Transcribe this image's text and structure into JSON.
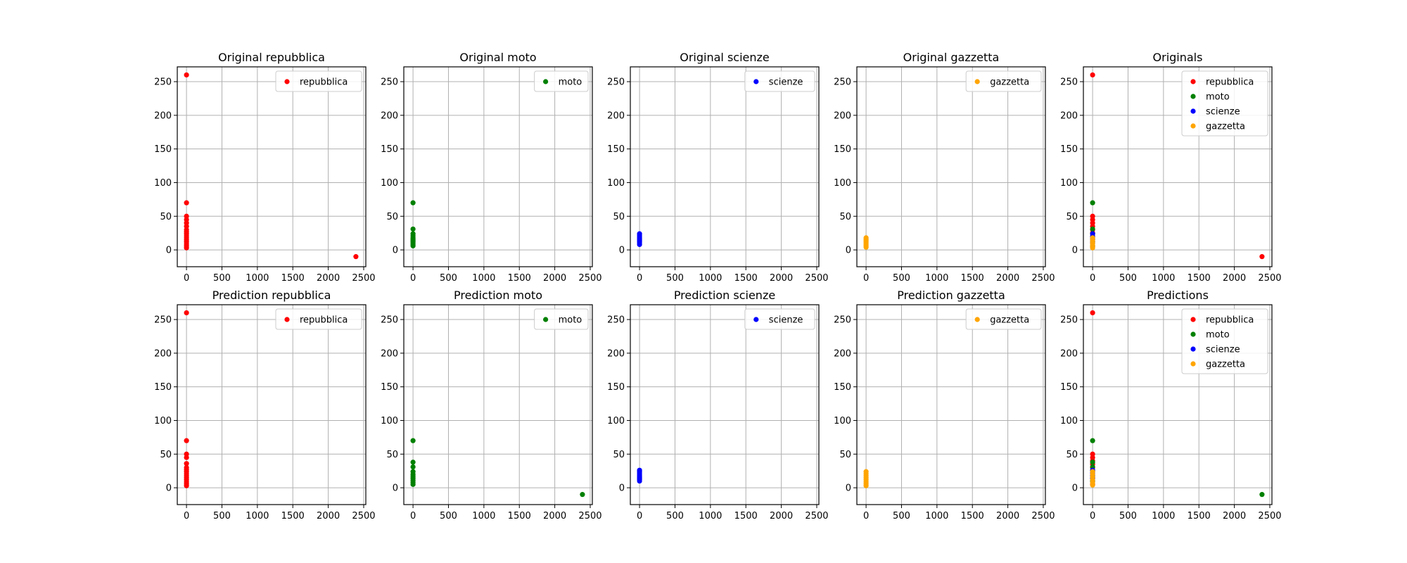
{
  "figure": {
    "layout": {
      "rows": 2,
      "cols": 5
    }
  },
  "chart_data": [
    {
      "type": "scatter",
      "title": "Original repubblica",
      "xlim": [
        -130,
        2530
      ],
      "ylim": [
        -25,
        272
      ],
      "xticks": [
        0,
        500,
        1000,
        1500,
        2000,
        2500
      ],
      "yticks": [
        0,
        50,
        100,
        150,
        200,
        250
      ],
      "grid": true,
      "legend_position": "top-right",
      "series": [
        {
          "name": "repubblica",
          "color": "#ff0000",
          "points": [
            [
              0,
              260
            ],
            [
              0,
              70
            ],
            [
              0,
              50
            ],
            [
              0,
              45
            ],
            [
              0,
              40
            ],
            [
              0,
              35
            ],
            [
              0,
              30
            ],
            [
              0,
              27
            ],
            [
              0,
              24
            ],
            [
              0,
              21
            ],
            [
              0,
              18
            ],
            [
              0,
              15
            ],
            [
              0,
              12
            ],
            [
              0,
              9
            ],
            [
              0,
              6
            ],
            [
              0,
              3
            ],
            [
              2390,
              -10
            ]
          ]
        }
      ]
    },
    {
      "type": "scatter",
      "title": "Original moto",
      "xlim": [
        -130,
        2530
      ],
      "ylim": [
        -25,
        272
      ],
      "xticks": [
        0,
        500,
        1000,
        1500,
        2000,
        2500
      ],
      "yticks": [
        0,
        50,
        100,
        150,
        200,
        250
      ],
      "grid": true,
      "legend_position": "top-right",
      "series": [
        {
          "name": "moto",
          "color": "#008000",
          "points": [
            [
              0,
              70
            ],
            [
              0,
              31
            ],
            [
              0,
              24
            ],
            [
              0,
              21
            ],
            [
              0,
              18
            ],
            [
              0,
              16
            ],
            [
              0,
              14
            ],
            [
              0,
              12
            ],
            [
              0,
              10
            ],
            [
              0,
              8
            ],
            [
              0,
              6
            ]
          ]
        }
      ]
    },
    {
      "type": "scatter",
      "title": "Original scienze",
      "xlim": [
        -130,
        2530
      ],
      "ylim": [
        -25,
        272
      ],
      "xticks": [
        0,
        500,
        1000,
        1500,
        2000,
        2500
      ],
      "yticks": [
        0,
        50,
        100,
        150,
        200,
        250
      ],
      "grid": true,
      "legend_position": "top-right",
      "series": [
        {
          "name": "scienze",
          "color": "#0000ff",
          "points": [
            [
              0,
              24
            ],
            [
              0,
              22
            ],
            [
              0,
              20
            ],
            [
              0,
              18
            ],
            [
              0,
              16
            ],
            [
              0,
              14
            ],
            [
              0,
              12
            ],
            [
              0,
              10
            ],
            [
              0,
              8
            ]
          ]
        }
      ]
    },
    {
      "type": "scatter",
      "title": "Original gazzetta",
      "xlim": [
        -130,
        2530
      ],
      "ylim": [
        -25,
        272
      ],
      "xticks": [
        0,
        500,
        1000,
        1500,
        2000,
        2500
      ],
      "yticks": [
        0,
        50,
        100,
        150,
        200,
        250
      ],
      "grid": true,
      "legend_position": "top-right",
      "series": [
        {
          "name": "gazzetta",
          "color": "#ffa500",
          "points": [
            [
              0,
              18
            ],
            [
              0,
              16
            ],
            [
              0,
              14
            ],
            [
              0,
              12
            ],
            [
              0,
              10
            ],
            [
              0,
              8
            ],
            [
              0,
              6
            ],
            [
              0,
              4
            ]
          ]
        }
      ]
    },
    {
      "type": "scatter",
      "title": "Originals",
      "xlim": [
        -130,
        2530
      ],
      "ylim": [
        -25,
        272
      ],
      "xticks": [
        0,
        500,
        1000,
        1500,
        2000,
        2500
      ],
      "yticks": [
        0,
        50,
        100,
        150,
        200,
        250
      ],
      "grid": true,
      "legend_position": "top-right",
      "series": [
        {
          "name": "repubblica",
          "color": "#ff0000",
          "points": [
            [
              0,
              260
            ],
            [
              0,
              50
            ],
            [
              0,
              45
            ],
            [
              0,
              40
            ],
            [
              0,
              35
            ],
            [
              0,
              30
            ],
            [
              0,
              25
            ],
            [
              0,
              20
            ],
            [
              0,
              15
            ],
            [
              0,
              10
            ],
            [
              0,
              5
            ],
            [
              2390,
              -10
            ]
          ]
        },
        {
          "name": "moto",
          "color": "#008000",
          "points": [
            [
              0,
              70
            ],
            [
              0,
              31
            ],
            [
              0,
              24
            ],
            [
              0,
              18
            ],
            [
              0,
              12
            ],
            [
              0,
              6
            ]
          ]
        },
        {
          "name": "scienze",
          "color": "#0000ff",
          "points": [
            [
              0,
              24
            ],
            [
              0,
              20
            ],
            [
              0,
              16
            ],
            [
              0,
              12
            ]
          ]
        },
        {
          "name": "gazzetta",
          "color": "#ffa500",
          "points": [
            [
              0,
              18
            ],
            [
              0,
              15
            ],
            [
              0,
              12
            ],
            [
              0,
              9
            ],
            [
              0,
              6
            ],
            [
              0,
              3
            ]
          ]
        }
      ]
    },
    {
      "type": "scatter",
      "title": "Prediction repubblica",
      "xlim": [
        -130,
        2530
      ],
      "ylim": [
        -25,
        272
      ],
      "xticks": [
        0,
        500,
        1000,
        1500,
        2000,
        2500
      ],
      "yticks": [
        0,
        50,
        100,
        150,
        200,
        250
      ],
      "grid": true,
      "legend_position": "top-right",
      "series": [
        {
          "name": "repubblica",
          "color": "#ff0000",
          "points": [
            [
              0,
              260
            ],
            [
              0,
              70
            ],
            [
              0,
              50
            ],
            [
              0,
              45
            ],
            [
              0,
              36
            ],
            [
              0,
              30
            ],
            [
              0,
              27
            ],
            [
              0,
              24
            ],
            [
              0,
              21
            ],
            [
              0,
              18
            ],
            [
              0,
              15
            ],
            [
              0,
              12
            ],
            [
              0,
              9
            ],
            [
              0,
              6
            ],
            [
              0,
              3
            ]
          ]
        }
      ]
    },
    {
      "type": "scatter",
      "title": "Prediction moto",
      "xlim": [
        -130,
        2530
      ],
      "ylim": [
        -25,
        272
      ],
      "xticks": [
        0,
        500,
        1000,
        1500,
        2000,
        2500
      ],
      "yticks": [
        0,
        50,
        100,
        150,
        200,
        250
      ],
      "grid": true,
      "legend_position": "top-right",
      "series": [
        {
          "name": "moto",
          "color": "#008000",
          "points": [
            [
              0,
              70
            ],
            [
              0,
              38
            ],
            [
              0,
              31
            ],
            [
              0,
              24
            ],
            [
              0,
              20
            ],
            [
              0,
              17
            ],
            [
              0,
              14
            ],
            [
              0,
              11
            ],
            [
              0,
              8
            ],
            [
              0,
              5
            ],
            [
              2390,
              -10
            ]
          ]
        }
      ]
    },
    {
      "type": "scatter",
      "title": "Prediction scienze",
      "xlim": [
        -130,
        2530
      ],
      "ylim": [
        -25,
        272
      ],
      "xticks": [
        0,
        500,
        1000,
        1500,
        2000,
        2500
      ],
      "yticks": [
        0,
        50,
        100,
        150,
        200,
        250
      ],
      "grid": true,
      "legend_position": "top-right",
      "series": [
        {
          "name": "scienze",
          "color": "#0000ff",
          "points": [
            [
              0,
              26
            ],
            [
              0,
              24
            ],
            [
              0,
              22
            ],
            [
              0,
              20
            ],
            [
              0,
              18
            ],
            [
              0,
              16
            ],
            [
              0,
              14
            ],
            [
              0,
              12
            ],
            [
              0,
              10
            ]
          ]
        }
      ]
    },
    {
      "type": "scatter",
      "title": "Prediction gazzetta",
      "xlim": [
        -130,
        2530
      ],
      "ylim": [
        -25,
        272
      ],
      "xticks": [
        0,
        500,
        1000,
        1500,
        2000,
        2500
      ],
      "yticks": [
        0,
        50,
        100,
        150,
        200,
        250
      ],
      "grid": true,
      "legend_position": "top-right",
      "series": [
        {
          "name": "gazzetta",
          "color": "#ffa500",
          "points": [
            [
              0,
              24
            ],
            [
              0,
              21
            ],
            [
              0,
              18
            ],
            [
              0,
              15
            ],
            [
              0,
              12
            ],
            [
              0,
              9
            ],
            [
              0,
              6
            ],
            [
              0,
              3
            ]
          ]
        }
      ]
    },
    {
      "type": "scatter",
      "title": "Predictions",
      "xlim": [
        -130,
        2530
      ],
      "ylim": [
        -25,
        272
      ],
      "xticks": [
        0,
        500,
        1000,
        1500,
        2000,
        2500
      ],
      "yticks": [
        0,
        50,
        100,
        150,
        200,
        250
      ],
      "grid": true,
      "legend_position": "top-right",
      "series": [
        {
          "name": "repubblica",
          "color": "#ff0000",
          "points": [
            [
              0,
              260
            ],
            [
              0,
              50
            ],
            [
              0,
              45
            ],
            [
              0,
              40
            ],
            [
              0,
              35
            ],
            [
              0,
              30
            ],
            [
              0,
              25
            ],
            [
              0,
              20
            ],
            [
              0,
              15
            ],
            [
              0,
              10
            ],
            [
              0,
              5
            ]
          ]
        },
        {
          "name": "moto",
          "color": "#008000",
          "points": [
            [
              0,
              70
            ],
            [
              0,
              38
            ],
            [
              0,
              31
            ],
            [
              0,
              24
            ],
            [
              0,
              17
            ],
            [
              0,
              10
            ],
            [
              2390,
              -10
            ]
          ]
        },
        {
          "name": "scienze",
          "color": "#0000ff",
          "points": [
            [
              0,
              26
            ],
            [
              0,
              22
            ],
            [
              0,
              18
            ],
            [
              0,
              14
            ]
          ]
        },
        {
          "name": "gazzetta",
          "color": "#ffa500",
          "points": [
            [
              0,
              24
            ],
            [
              0,
              20
            ],
            [
              0,
              16
            ],
            [
              0,
              12
            ],
            [
              0,
              8
            ],
            [
              0,
              4
            ]
          ]
        }
      ]
    }
  ]
}
